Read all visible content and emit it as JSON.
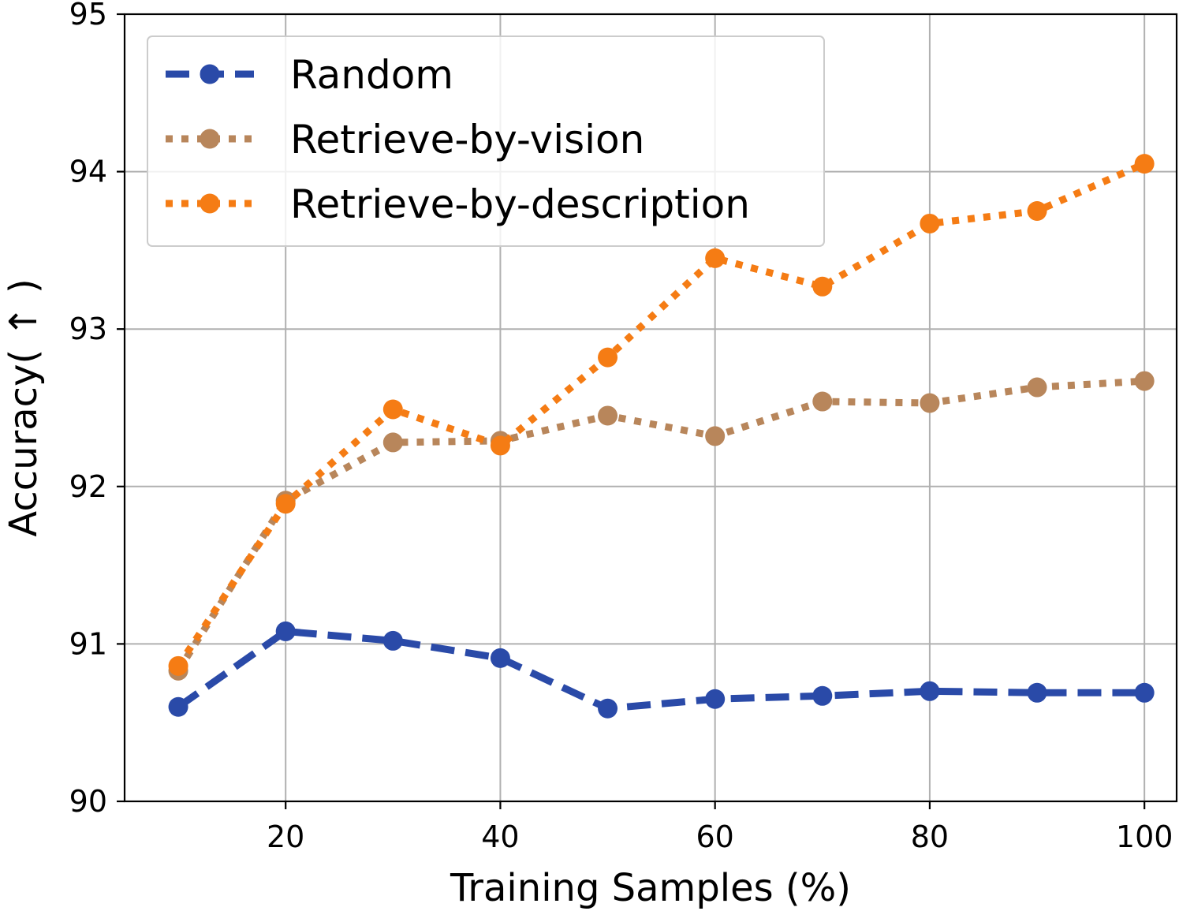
{
  "chart_data": {
    "type": "line",
    "title": "",
    "xlabel": "Training Samples (%)",
    "ylabel": "Accuracy( ↑ )",
    "xlim": [
      5,
      103
    ],
    "ylim": [
      90,
      95
    ],
    "grid": true,
    "legend_position": "top-left",
    "x_ticks": [
      {
        "value": 20,
        "label": "20"
      },
      {
        "value": 40,
        "label": "40"
      },
      {
        "value": 60,
        "label": "60"
      },
      {
        "value": 80,
        "label": "80"
      },
      {
        "value": 100,
        "label": "100"
      }
    ],
    "y_ticks": [
      {
        "value": 90,
        "label": "90"
      },
      {
        "value": 91,
        "label": "91"
      },
      {
        "value": 92,
        "label": "92"
      },
      {
        "value": 93,
        "label": "93"
      },
      {
        "value": 94,
        "label": "94"
      },
      {
        "value": 95,
        "label": "95"
      }
    ],
    "x": [
      10,
      20,
      30,
      40,
      50,
      60,
      70,
      80,
      90,
      100
    ],
    "series": [
      {
        "name": "Random",
        "color": "#2a4aa8",
        "line_style": "dashed",
        "values": [
          90.6,
          91.08,
          91.02,
          90.91,
          90.59,
          90.65,
          90.67,
          90.7,
          90.69,
          90.69
        ]
      },
      {
        "name": "Retrieve-by-vision",
        "color": "#b8865b",
        "line_style": "dotted",
        "values": [
          90.83,
          91.91,
          92.28,
          92.29,
          92.45,
          92.32,
          92.54,
          92.53,
          92.63,
          92.67
        ]
      },
      {
        "name": "Retrieve-by-description",
        "color": "#f57c14",
        "line_style": "dotted",
        "values": [
          90.86,
          91.89,
          92.49,
          92.26,
          92.82,
          93.45,
          93.27,
          93.67,
          93.75,
          94.05
        ]
      }
    ]
  }
}
